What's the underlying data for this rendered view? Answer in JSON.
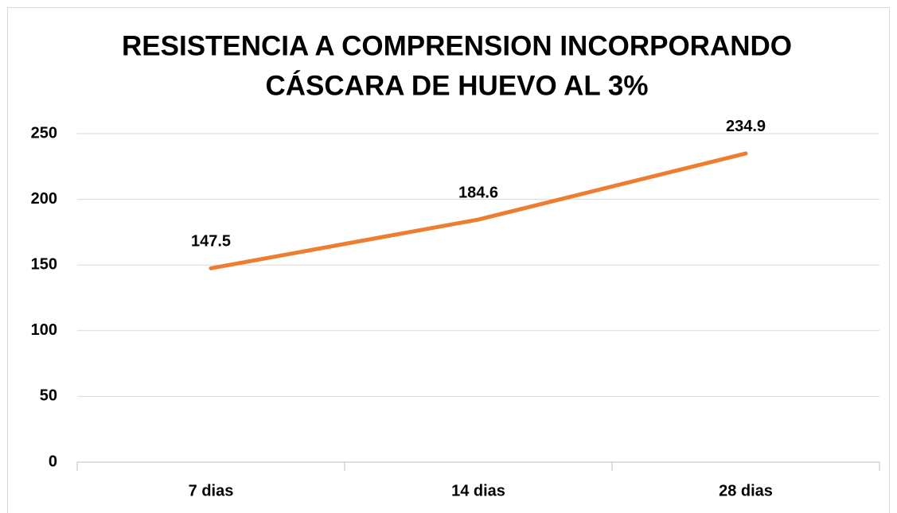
{
  "chart_data": {
    "type": "line",
    "title": [
      "RESISTENCIA A COMPRENSION INCORPORANDO",
      "CÁSCARA DE  HUEVO AL 3%"
    ],
    "categories": [
      "7 dias",
      "14 dias",
      "28 dias"
    ],
    "values": [
      147.5,
      184.6,
      234.9
    ],
    "color": "#ed7d31",
    "ylim": [
      0,
      250
    ],
    "yticks": [
      0,
      50,
      100,
      150,
      200,
      250
    ],
    "grid": true
  }
}
